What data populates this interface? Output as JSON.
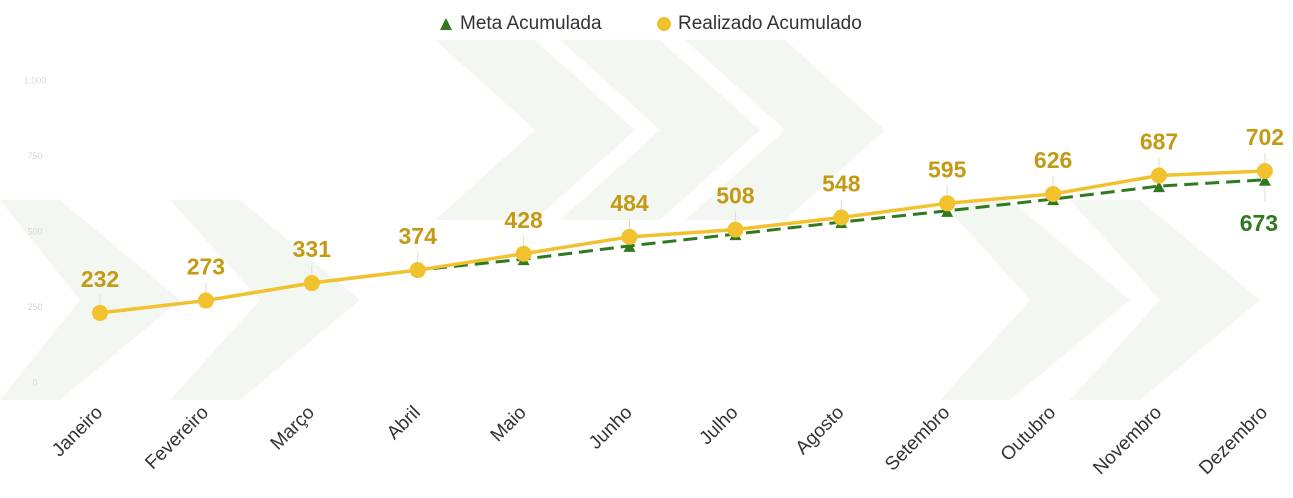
{
  "chart_data": {
    "type": "line",
    "categories": [
      "Janeiro",
      "Fevereiro",
      "Março",
      "Abril",
      "Maio",
      "Junho",
      "Julho",
      "Agosto",
      "Setembro",
      "Outubro",
      "Novembro",
      "Dezembro"
    ],
    "series": [
      {
        "name": "Meta Acumulada",
        "color": "#2f7a1f",
        "values": [
          232,
          273,
          331,
          374,
          410,
          454,
          493,
          533,
          570,
          609,
          652,
          673
        ]
      },
      {
        "name": "Realizado Acumulado",
        "color": "#f2c12e",
        "values": [
          232,
          273,
          331,
          374,
          428,
          484,
          508,
          548,
          595,
          626,
          687,
          702
        ]
      }
    ],
    "ylim": [
      0,
      1000
    ],
    "yticks": [
      0,
      250,
      500,
      750,
      {
        "value": 1000,
        "label": "1,000"
      }
    ],
    "legend": "top"
  }
}
